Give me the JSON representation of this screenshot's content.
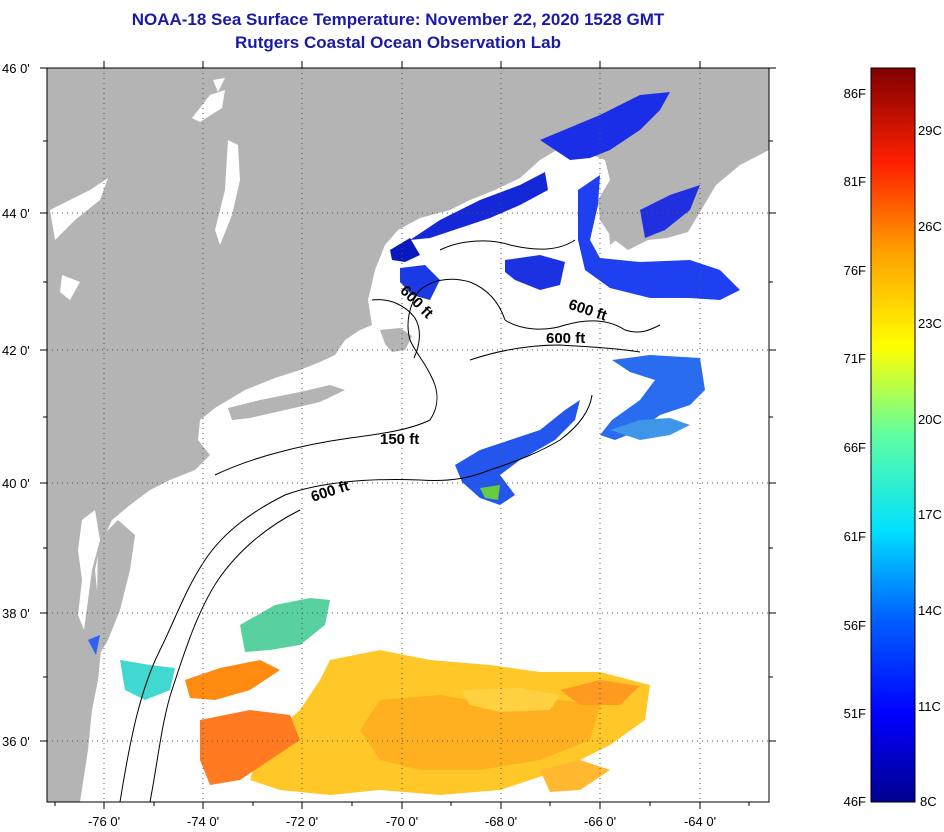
{
  "title": "NOAA-18 Sea Surface Temperature:  November 22, 2020 1528 GMT",
  "subtitle": "Rutgers Coastal Ocean Observation Lab",
  "map": {
    "lat_labels": [
      "46 0'",
      "44 0'",
      "42 0'",
      "40 0'",
      "38 0'",
      "36 0'"
    ],
    "lon_labels": [
      "-76 0'",
      "-74 0'",
      "-72 0'",
      "-70 0'",
      "-68 0'",
      "-66 0'",
      "-64 0'"
    ],
    "contours": [
      "600 ft",
      "600 ft",
      "600 ft",
      "150 ft",
      "600 ft"
    ]
  },
  "colorbar": {
    "f_labels": [
      "86F",
      "81F",
      "76F",
      "71F",
      "66F",
      "61F",
      "56F",
      "51F",
      "46F"
    ],
    "c_labels": [
      "29C",
      "26C",
      "23C",
      "20C",
      "17C",
      "14C",
      "11C",
      "8C"
    ]
  },
  "colors": {
    "land": "#b4b4b4",
    "ocean": "#ffffff",
    "title": "#1a1aa6"
  }
}
